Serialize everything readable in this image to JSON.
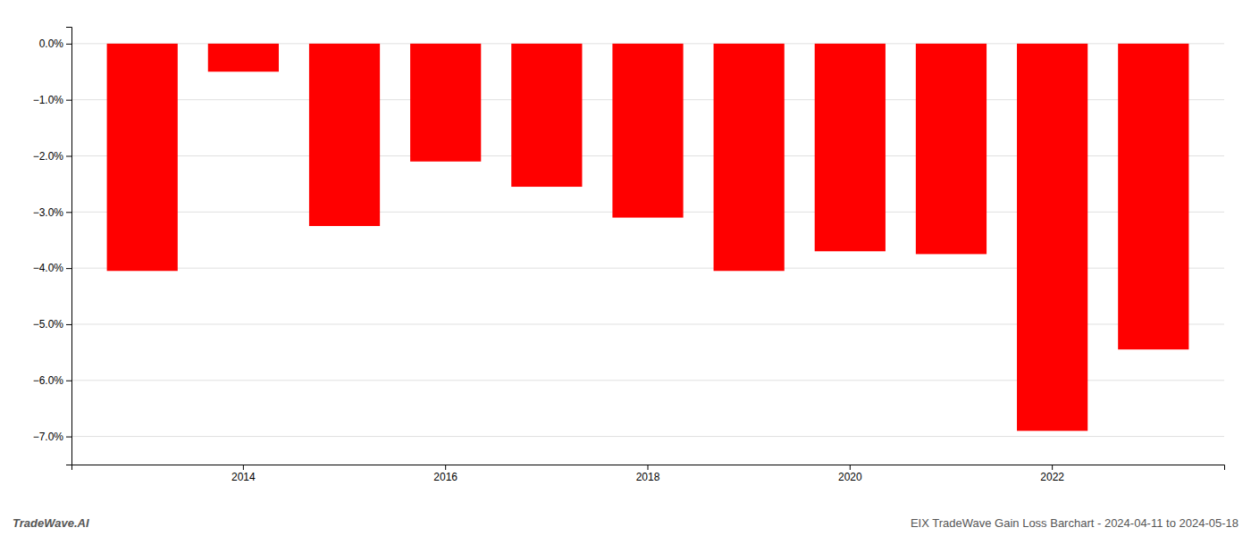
{
  "chart_data": {
    "type": "bar",
    "categories": [
      null,
      "2014",
      null,
      "2016",
      null,
      "2018",
      null,
      "2020",
      null,
      "2022",
      null
    ],
    "values": [
      -4.05,
      -0.5,
      -3.25,
      -2.1,
      -2.55,
      -3.1,
      -4.05,
      -3.7,
      -3.75,
      -6.9,
      -5.45
    ],
    "color": "#ff0000",
    "ylim": [
      -7.5,
      0.3
    ],
    "yticks": [
      {
        "value": 0.0,
        "label": "0.0%"
      },
      {
        "value": -1.0,
        "label": "−1.0%"
      },
      {
        "value": -2.0,
        "label": "−2.0%"
      },
      {
        "value": -3.0,
        "label": "−3.0%"
      },
      {
        "value": -4.0,
        "label": "−4.0%"
      },
      {
        "value": -5.0,
        "label": "−5.0%"
      },
      {
        "value": -6.0,
        "label": "−6.0%"
      },
      {
        "value": -7.0,
        "label": "−7.0%"
      }
    ],
    "grid": true,
    "annotations": [
      "TradeWave.AI",
      "EIX TradeWave Gain Loss Barchart - 2024-04-11 to 2024-05-18"
    ]
  }
}
